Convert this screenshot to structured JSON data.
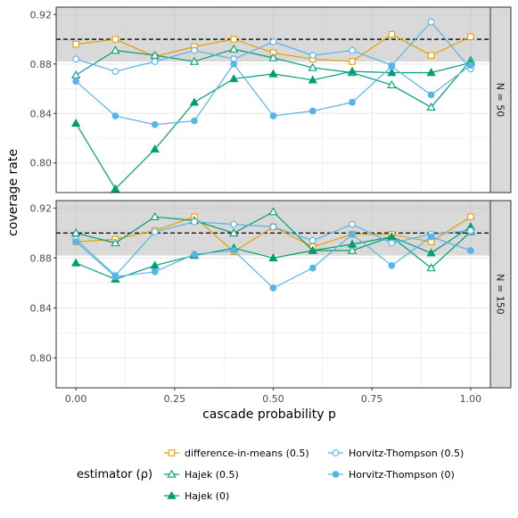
{
  "chart_data": {
    "type": "line",
    "xlabel": "cascade probability p",
    "ylabel": "coverage rate",
    "xlim": [
      -0.05,
      1.05
    ],
    "ylim": [
      0.776,
      0.926
    ],
    "x_ticks": [
      0,
      0.25,
      0.5,
      0.75,
      1
    ],
    "x_tick_labels": [
      "0.00",
      "0.25",
      "0.50",
      "0.75",
      "1.00"
    ],
    "y_ticks": [
      0.8,
      0.84,
      0.88,
      0.92
    ],
    "y_tick_labels": [
      "0.80",
      "0.84",
      "0.88",
      "0.92"
    ],
    "reference_line": 0.9,
    "shaded_band": [
      0.882,
      0.926
    ],
    "grid": true,
    "legend_position": "bottom",
    "legend_title": "estimator (ρ)",
    "colors": {
      "difference-in-means (0.5)": "#E69F00",
      "Hajek (0.5)": "#009E73",
      "Hajek (0)": "#009E73",
      "Horvitz-Thompson (0.5)": "#56B4E9",
      "Horvitz-Thompson (0)": "#56B4E9"
    },
    "panels": [
      {
        "label": "N = 50",
        "x": [
          0,
          0.1,
          0.2,
          0.3,
          0.4,
          0.5,
          0.6,
          0.7,
          0.8,
          0.9,
          1.0
        ],
        "series": [
          {
            "name": "difference-in-means (0.5)",
            "marker": "open-square",
            "values": [
              0.896,
              0.9,
              0.886,
              0.894,
              0.9,
              0.889,
              0.884,
              0.882,
              0.904,
              0.887,
              0.902
            ]
          },
          {
            "name": "Hajek (0.5)",
            "marker": "open-triangle",
            "values": [
              0.871,
              0.891,
              0.887,
              0.882,
              0.892,
              0.885,
              0.877,
              0.873,
              0.863,
              0.845,
              0.883
            ]
          },
          {
            "name": "Hajek (0)",
            "marker": "filled-triangle",
            "values": [
              0.832,
              0.779,
              0.811,
              0.849,
              0.868,
              0.872,
              0.867,
              0.874,
              0.873,
              0.873,
              0.881
            ]
          },
          {
            "name": "Horvitz-Thompson (0.5)",
            "marker": "open-circle",
            "values": [
              0.884,
              0.874,
              0.882,
              0.891,
              0.884,
              0.898,
              0.887,
              0.891,
              0.879,
              0.914,
              0.876
            ]
          },
          {
            "name": "Horvitz-Thompson (0)",
            "marker": "filled-circle",
            "values": [
              0.866,
              0.838,
              0.831,
              0.834,
              0.88,
              0.838,
              0.842,
              0.849,
              0.878,
              0.855,
              0.879
            ]
          }
        ]
      },
      {
        "label": "N = 150",
        "x": [
          0,
          0.1,
          0.2,
          0.3,
          0.4,
          0.5,
          0.6,
          0.7,
          0.8,
          0.9,
          1.0
        ],
        "series": [
          {
            "name": "difference-in-means (0.5)",
            "marker": "open-square",
            "values": [
              0.893,
              0.895,
              0.902,
              0.913,
              0.885,
              0.905,
              0.889,
              0.899,
              0.899,
              0.893,
              0.913
            ]
          },
          {
            "name": "Hajek (0.5)",
            "marker": "open-triangle",
            "values": [
              0.9,
              0.892,
              0.913,
              0.91,
              0.9,
              0.917,
              0.886,
              0.886,
              0.897,
              0.872,
              0.901
            ]
          },
          {
            "name": "Hajek (0)",
            "marker": "filled-triangle",
            "values": [
              0.876,
              0.863,
              0.874,
              0.882,
              0.888,
              0.88,
              0.886,
              0.891,
              0.897,
              0.884,
              0.905
            ]
          },
          {
            "name": "Horvitz-Thompson (0.5)",
            "marker": "open-circle",
            "values": [
              0.895,
              0.866,
              0.901,
              0.909,
              0.907,
              0.905,
              0.894,
              0.907,
              0.892,
              0.899,
              0.902
            ]
          },
          {
            "name": "Horvitz-Thompson (0)",
            "marker": "filled-circle",
            "values": [
              0.893,
              0.865,
              0.869,
              0.883,
              0.886,
              0.856,
              0.872,
              0.899,
              0.874,
              0.897,
              0.886
            ]
          }
        ]
      }
    ]
  }
}
